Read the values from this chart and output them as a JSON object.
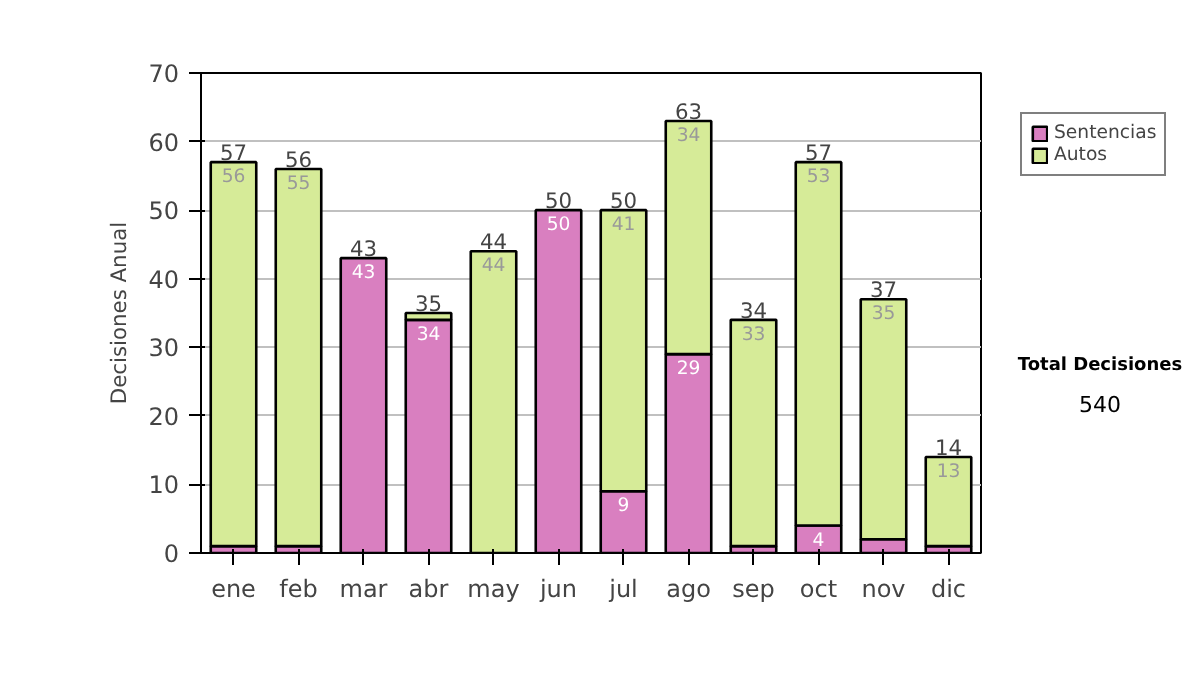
{
  "chart_data": {
    "type": "bar",
    "stacked": true,
    "ylabel": "Decisiones Anual",
    "categories": [
      "ene",
      "feb",
      "mar",
      "abr",
      "may",
      "jun",
      "jul",
      "ago",
      "sep",
      "oct",
      "nov",
      "dic"
    ],
    "series": [
      {
        "name": "Sentencias",
        "color": "#d97fc0",
        "values": [
          1,
          1,
          43,
          34,
          0,
          50,
          9,
          29,
          1,
          4,
          2,
          1
        ],
        "value_labels": [
          null,
          null,
          "43",
          "34",
          null,
          "50",
          "9",
          "29",
          null,
          "4",
          null,
          null
        ]
      },
      {
        "name": "Autos",
        "color": "#d6eb98",
        "values": [
          56,
          55,
          0,
          1,
          44,
          0,
          41,
          34,
          33,
          53,
          35,
          13
        ],
        "value_labels": [
          "56",
          "55",
          null,
          null,
          "44",
          null,
          "41",
          "34",
          "33",
          "53",
          "35",
          "13"
        ]
      }
    ],
    "totals": [
      "57",
      "56",
      "43",
      "35",
      "44",
      "50",
      "50",
      "63",
      "34",
      "57",
      "37",
      "14"
    ],
    "ylim": [
      0,
      70
    ],
    "yticks": [
      0,
      10,
      20,
      30,
      40,
      50,
      60,
      70
    ],
    "grid": "y",
    "legend": "right",
    "annotations": [
      "Total Decisiones",
      "540"
    ]
  }
}
